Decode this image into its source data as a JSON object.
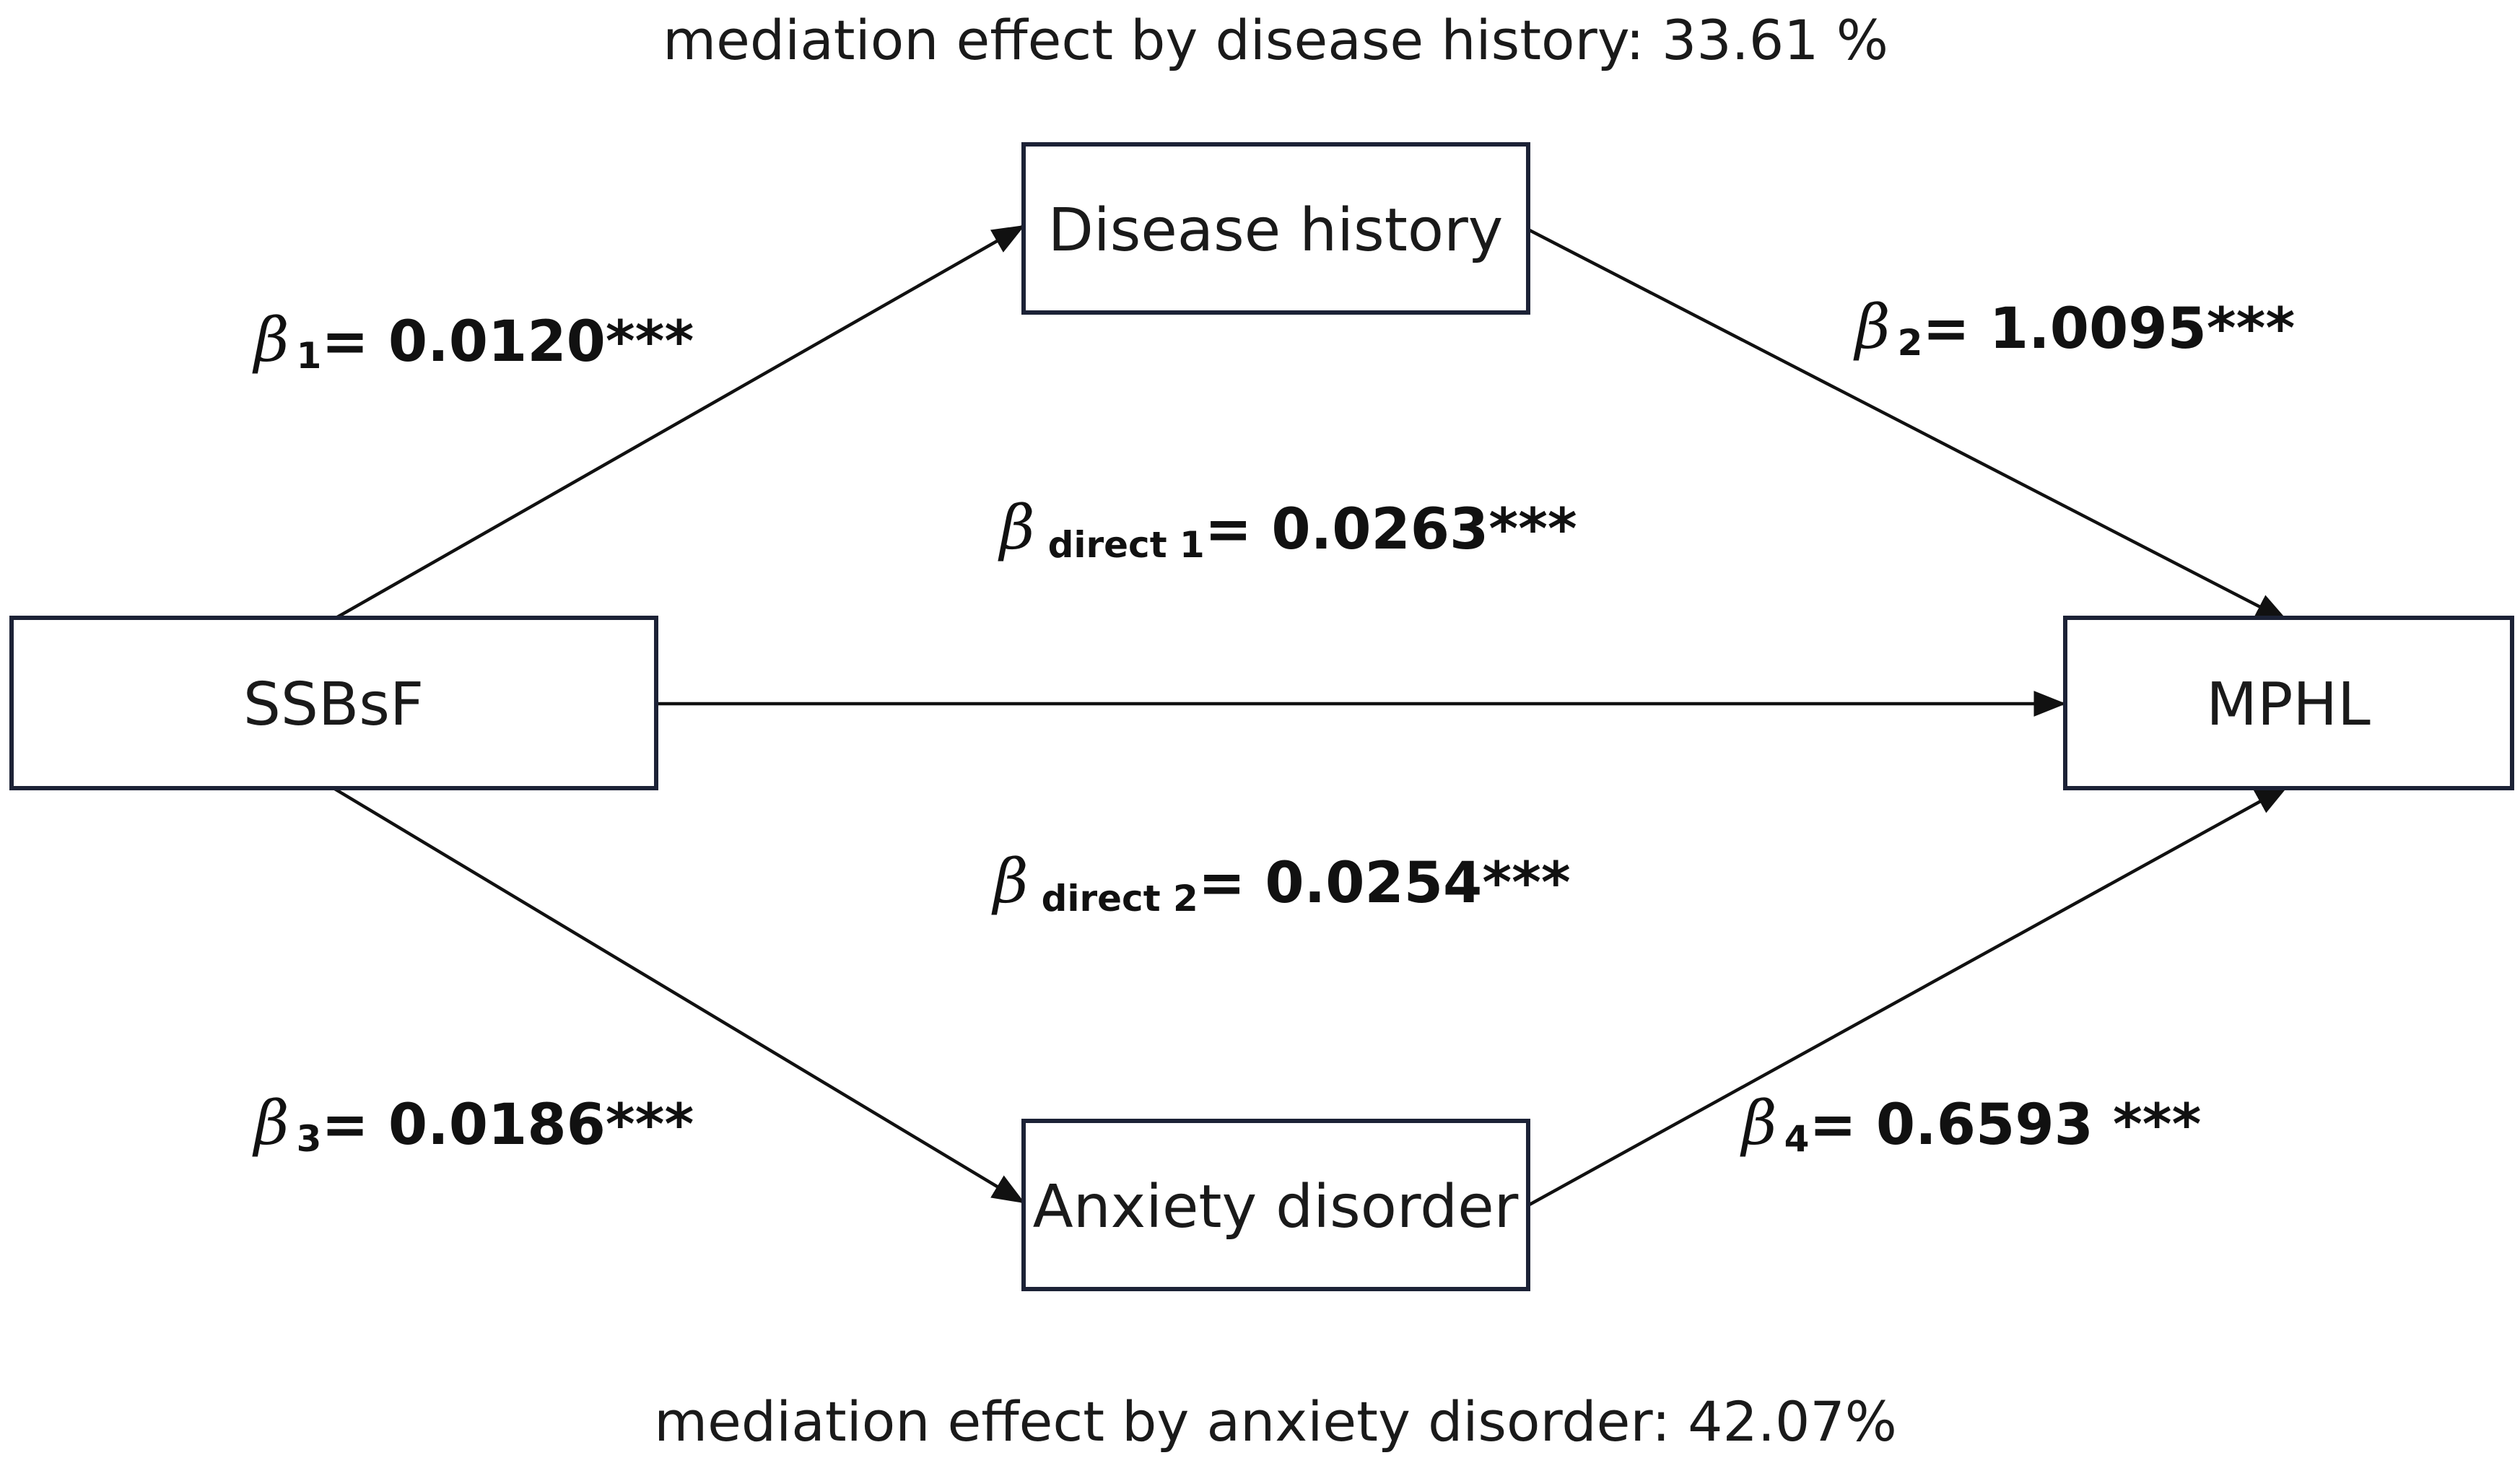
{
  "captions": {
    "top": "mediation effect by disease history: 33.61 %",
    "bottom": "mediation effect by anxiety disorder: 42.07%"
  },
  "nodes": {
    "exposure": "SSBsF",
    "outcome": "MPHL",
    "mediator1": "Disease history",
    "mediator2": "Anxiety disorder"
  },
  "coefficients": {
    "beta_symbol": "β",
    "b1": {
      "sub": "1",
      "value": "= 0.0120***"
    },
    "b2": {
      "sub": "2",
      "value": "= 1.0095***"
    },
    "b3": {
      "sub": "3",
      "value": "= 0.0186***"
    },
    "b4": {
      "sub": "4",
      "value": "= 0.6593 ***"
    },
    "direct1": {
      "sub": "direct 1",
      "value": "= 0.0263***"
    },
    "direct2": {
      "sub": "direct 2",
      "value": "= 0.0254***"
    }
  }
}
